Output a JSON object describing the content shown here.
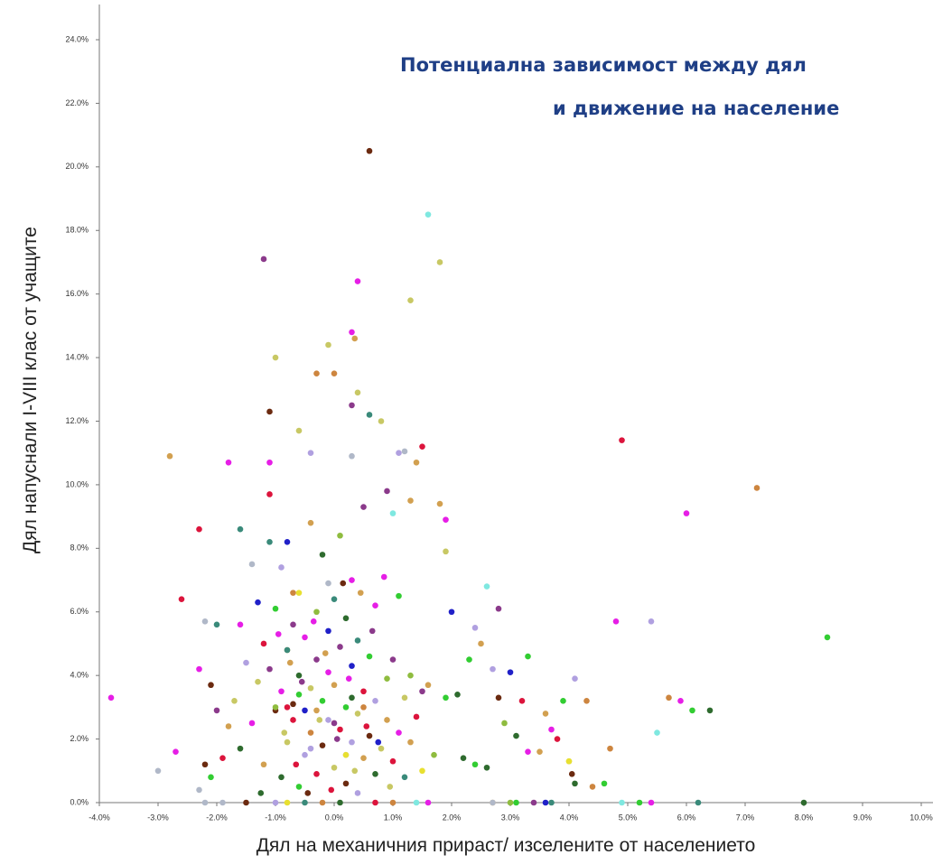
{
  "chart_data": {
    "type": "scatter",
    "title_lines": [
      "Потенциална зависимост между дял",
      "и движение на население"
    ],
    "xlabel": "Дял на механичния прираст/ изселените от населението",
    "ylabel": "Дял напуснали I-VIII клас от учащите",
    "xlim": [
      -4,
      10
    ],
    "ylim": [
      0,
      24
    ],
    "xticks": [
      {
        "value": -4,
        "label": "-4.0%"
      },
      {
        "value": -3,
        "label": "-3.0%"
      },
      {
        "value": -2,
        "label": "-2.0%"
      },
      {
        "value": -1,
        "label": "-1.0%"
      },
      {
        "value": 0,
        "label": "0.0%"
      },
      {
        "value": 1,
        "label": "1.0%"
      },
      {
        "value": 2,
        "label": "2.0%"
      },
      {
        "value": 3,
        "label": "3.0%"
      },
      {
        "value": 4,
        "label": "4.0%"
      },
      {
        "value": 5,
        "label": "5.0%"
      },
      {
        "value": 6,
        "label": "6.0%"
      },
      {
        "value": 7,
        "label": "7.0%"
      },
      {
        "value": 8,
        "label": "8.0%"
      },
      {
        "value": 9,
        "label": "9.0%"
      },
      {
        "value": 10,
        "label": "10.0%"
      }
    ],
    "yticks": [
      {
        "value": 0,
        "label": "0.0%"
      },
      {
        "value": 2,
        "label": "2.0%"
      },
      {
        "value": 4,
        "label": "4.0%"
      },
      {
        "value": 6,
        "label": "6.0%"
      },
      {
        "value": 8,
        "label": "8.0%"
      },
      {
        "value": 10,
        "label": "10.0%"
      },
      {
        "value": 12,
        "label": "12.0%"
      },
      {
        "value": 14,
        "label": "14.0%"
      },
      {
        "value": 16,
        "label": "16.0%"
      },
      {
        "value": 18,
        "label": "18.0%"
      },
      {
        "value": 20,
        "label": "20.0%"
      },
      {
        "value": 22,
        "label": "22.0%"
      },
      {
        "value": 24,
        "label": "24.0%"
      }
    ],
    "grid": false,
    "series": [
      {
        "color": "#e61ee6",
        "x": [
          -3.8,
          -2.7,
          -2.3,
          -1.8,
          -1.1,
          0.3,
          0.4,
          1.9,
          6.0,
          4.8,
          5.9,
          3.7,
          3.3,
          -1.4,
          -0.9,
          -0.5,
          -0.1,
          0.3,
          0.7,
          1.1,
          -1.6,
          -0.95,
          -0.35,
          0.25,
          0.85,
          5.4,
          1.6
        ],
        "values": [
          3.3,
          1.6,
          4.2,
          10.7,
          10.7,
          14.8,
          16.4,
          8.9,
          9.1,
          5.7,
          3.2,
          2.3,
          1.6,
          2.5,
          3.5,
          5.2,
          4.1,
          7.0,
          6.2,
          2.2,
          5.6,
          5.3,
          5.7,
          3.9,
          7.1,
          0,
          0
        ]
      },
      {
        "color": "#c8c864",
        "x": [
          -1.0,
          -0.6,
          -0.1,
          0.4,
          0.8,
          1.8,
          1.3,
          1.9,
          4.0,
          -1.3,
          -0.8,
          -0.4,
          0.0,
          0.4,
          0.8,
          1.2,
          -1.7,
          -0.85,
          -0.25,
          0.35,
          0.95
        ],
        "values": [
          14.0,
          11.7,
          14.4,
          12.9,
          12.0,
          17.0,
          15.8,
          7.9,
          1.3,
          3.8,
          1.9,
          3.6,
          1.1,
          2.8,
          1.7,
          3.3,
          3.2,
          2.2,
          2.6,
          1.0,
          0.5
        ]
      },
      {
        "color": "#d2a050",
        "x": [
          -2.8,
          0.35,
          1.4,
          1.3,
          1.8,
          2.5,
          3.6,
          3.5,
          1.6,
          -1.2,
          -0.8,
          -0.4,
          0.0,
          0.5,
          0.9,
          1.3,
          -1.8,
          -0.75,
          -0.15,
          0.45,
          -0.3,
          2.7
        ],
        "values": [
          10.9,
          14.6,
          10.7,
          9.5,
          9.4,
          5.0,
          2.8,
          1.6,
          3.7,
          1.2,
          4.8,
          8.8,
          3.7,
          1.4,
          2.6,
          1.9,
          2.4,
          4.4,
          4.7,
          6.6,
          2.9,
          0
        ]
      },
      {
        "color": "#dc143c",
        "x": [
          -2.6,
          -2.3,
          -1.1,
          1.5,
          4.9,
          3.2,
          3.8,
          -1.2,
          -0.7,
          -0.3,
          0.1,
          0.5,
          1.0,
          1.4,
          -1.9,
          -0.65,
          -0.05,
          0.55,
          -0.8,
          0.7
        ],
        "values": [
          6.4,
          8.6,
          9.7,
          11.2,
          11.4,
          3.2,
          2.0,
          5.0,
          2.6,
          0.9,
          2.3,
          3.5,
          1.3,
          2.7,
          1.4,
          1.2,
          0.4,
          2.4,
          3.0,
          0
        ]
      },
      {
        "color": "#8b3a8b",
        "x": [
          -1.2,
          0.3,
          0.9,
          2.8,
          -1.1,
          -0.7,
          -0.3,
          0.1,
          0.5,
          1.0,
          1.5,
          -2.0,
          -0.55,
          0.05,
          0.65,
          0.0,
          3.4
        ],
        "values": [
          17.1,
          12.5,
          9.8,
          6.1,
          4.2,
          5.6,
          4.5,
          4.9,
          9.3,
          4.5,
          3.5,
          2.9,
          3.8,
          2.0,
          5.4,
          2.5,
          0
        ]
      },
      {
        "color": "#6b2a10",
        "x": [
          0.6,
          2.8,
          4.05,
          -1.1,
          -1.0,
          -0.7,
          -0.2,
          0.2,
          0.6,
          -2.1,
          -2.2,
          -0.45,
          0.15,
          -1.5
        ],
        "values": [
          20.5,
          3.3,
          0.9,
          12.3,
          2.9,
          3.1,
          1.8,
          0.6,
          2.1,
          3.7,
          1.2,
          0.3,
          6.9,
          0
        ]
      },
      {
        "color": "#32cd32",
        "x": [
          2.3,
          3.9,
          4.6,
          6.1,
          8.4,
          2.4,
          1.9,
          3.3,
          -1.0,
          -0.6,
          -0.2,
          0.2,
          0.6,
          1.1,
          -2.1,
          -0.6,
          3.1,
          5.2
        ],
        "values": [
          4.5,
          3.2,
          0.6,
          2.9,
          5.2,
          1.2,
          3.3,
          4.6,
          6.1,
          0.5,
          3.2,
          3.0,
          4.6,
          6.5,
          0.8,
          3.4,
          0,
          0
        ]
      },
      {
        "color": "#2e6b2e",
        "x": [
          6.4,
          2.2,
          2.6,
          2.1,
          3.1,
          4.1,
          -0.9,
          -0.6,
          -0.2,
          0.2,
          0.7,
          -1.6,
          -1.25,
          0.3,
          8.0,
          0.1
        ],
        "values": [
          2.9,
          1.4,
          1.1,
          3.4,
          2.1,
          0.6,
          0.8,
          4.0,
          7.8,
          5.8,
          0.9,
          1.7,
          0.3,
          3.3,
          0,
          0
        ]
      },
      {
        "color": "#b0a0e0",
        "x": [
          -0.4,
          1.1,
          2.7,
          4.1,
          5.4,
          2.4,
          -0.9,
          -0.5,
          -0.1,
          0.3,
          0.7,
          -1.5,
          -0.4,
          0.2,
          -1.0,
          0.4
        ],
        "values": [
          11.0,
          11.0,
          4.2,
          3.9,
          5.7,
          5.5,
          7.4,
          1.5,
          2.6,
          1.9,
          3.2,
          4.4,
          1.7,
          1.5,
          0,
          0.3
        ]
      },
      {
        "color": "#2020c8",
        "x": [
          2.0,
          3.0,
          -0.8,
          -0.5,
          -0.1,
          0.3,
          -1.3,
          0.75,
          3.6
        ],
        "values": [
          6.0,
          4.1,
          8.2,
          2.9,
          5.4,
          4.3,
          6.3,
          1.9,
          0
        ]
      },
      {
        "color": "#3a8a7a",
        "x": [
          -2.0,
          -1.6,
          0.6,
          -0.8,
          0.0,
          0.4,
          -1.1,
          1.2,
          -0.5,
          3.7,
          6.2
        ],
        "values": [
          5.6,
          8.6,
          12.2,
          4.8,
          6.4,
          5.1,
          8.2,
          0.8,
          0,
          0,
          0
        ]
      },
      {
        "color": "#b0b8c8",
        "x": [
          -3.0,
          -2.2,
          0.3,
          1.2,
          -2.3,
          -1.4,
          -0.1,
          -2.2,
          -1.9,
          2.7
        ],
        "values": [
          1.0,
          5.7,
          10.9,
          11.05,
          0.4,
          7.5,
          6.9,
          0,
          0,
          0
        ]
      },
      {
        "color": "#7fe8e0",
        "x": [
          1.6,
          1.0,
          2.6,
          5.5,
          1.4,
          4.9
        ],
        "values": [
          18.5,
          9.1,
          6.8,
          2.2,
          0,
          0
        ]
      },
      {
        "color": "#cd853f",
        "x": [
          0.0,
          -0.3,
          7.2,
          4.3,
          4.4,
          4.7,
          5.7,
          -0.7,
          0.5,
          -0.4,
          1.0,
          -0.2
        ],
        "values": [
          13.5,
          13.5,
          9.9,
          3.2,
          0.5,
          1.7,
          3.3,
          6.6,
          3.0,
          2.2,
          0,
          0
        ]
      },
      {
        "color": "#8fbc3f",
        "x": [
          2.9,
          1.7,
          -1.0,
          -0.3,
          0.1,
          0.9,
          1.3,
          3.0
        ],
        "values": [
          2.5,
          1.5,
          3.0,
          6.0,
          8.4,
          3.9,
          4.0,
          0
        ]
      },
      {
        "color": "#e8e030",
        "x": [
          4.0,
          -0.6,
          0.2,
          1.5,
          -0.8
        ],
        "values": [
          1.3,
          6.6,
          1.5,
          1.0,
          0
        ]
      }
    ]
  }
}
